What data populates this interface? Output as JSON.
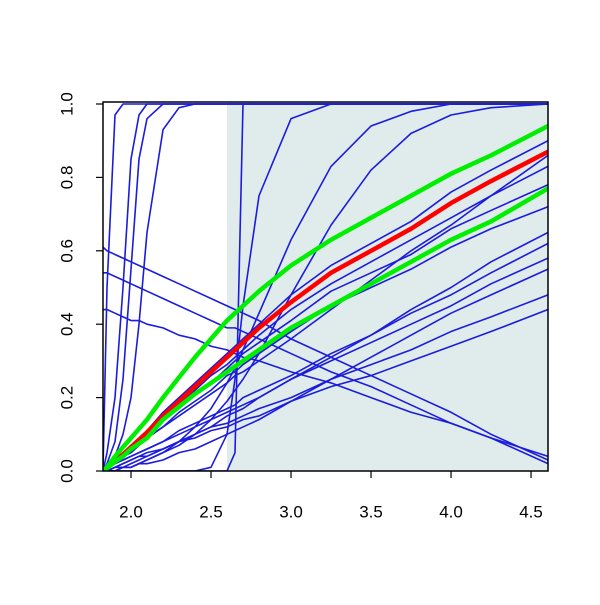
{
  "chart_data": {
    "type": "line",
    "xlim": [
      1.825,
      4.606
    ],
    "ylim": [
      0,
      1
    ],
    "xticks": [
      {
        "value": 2,
        "label": "2.0"
      },
      2.5,
      {
        "value": 3,
        "label": "3.0"
      },
      3.5,
      {
        "value": 4,
        "label": "4.0"
      },
      4.5
    ],
    "yticks": [
      {
        "value": 0,
        "label": "0.0"
      },
      0.2,
      0.4,
      0.6,
      0.8,
      {
        "value": 1,
        "label": "1.0"
      }
    ],
    "shaded_region": {
      "xmin": 2.6,
      "color": "#e0ecec"
    },
    "x": [
      1.825,
      1.85,
      1.9,
      1.95,
      2.0,
      2.05,
      2.1,
      2.2,
      2.3,
      2.4,
      2.5,
      2.6,
      2.65,
      2.7,
      2.8,
      3.0,
      3.25,
      3.5,
      3.75,
      4.0,
      4.25,
      4.606
    ],
    "series": [
      {
        "color": "#1c1cdc",
        "width": 1.6,
        "values": [
          0,
          0,
          0.01,
          0.02,
          0.03,
          0.04,
          0.04,
          0.06,
          0.08,
          0.09,
          0.11,
          0.12,
          0.13,
          0.14,
          0.15,
          0.19,
          0.23,
          0.26,
          0.3,
          0.34,
          0.38,
          0.44
        ]
      },
      {
        "color": "#1c1cdc",
        "width": 1.6,
        "values": [
          0,
          0,
          0.01,
          0.02,
          0.03,
          0.04,
          0.05,
          0.06,
          0.08,
          0.1,
          0.12,
          0.13,
          0.14,
          0.15,
          0.17,
          0.2,
          0.25,
          0.29,
          0.33,
          0.38,
          0.42,
          0.48
        ]
      },
      {
        "color": "#1c1cdc",
        "width": 1.6,
        "values": [
          0,
          0.01,
          0.02,
          0.03,
          0.04,
          0.05,
          0.06,
          0.08,
          0.1,
          0.12,
          0.14,
          0.16,
          0.17,
          0.18,
          0.2,
          0.25,
          0.3,
          0.35,
          0.4,
          0.45,
          0.51,
          0.58
        ]
      },
      {
        "color": "#1c1cdc",
        "width": 1.6,
        "values": [
          0,
          0,
          0.01,
          0.01,
          0.02,
          0.03,
          0.04,
          0.06,
          0.08,
          0.1,
          0.12,
          0.15,
          0.16,
          0.17,
          0.2,
          0.25,
          0.31,
          0.37,
          0.44,
          0.5,
          0.57,
          0.65
        ]
      },
      {
        "color": "#1c1cdc",
        "width": 1.6,
        "values": [
          0,
          0.01,
          0.02,
          0.04,
          0.05,
          0.07,
          0.09,
          0.12,
          0.16,
          0.19,
          0.22,
          0.26,
          0.27,
          0.29,
          0.32,
          0.38,
          0.45,
          0.5,
          0.55,
          0.61,
          0.66,
          0.72
        ]
      },
      {
        "color": "#1c1cdc",
        "width": 1.6,
        "values": [
          0,
          0.01,
          0.03,
          0.04,
          0.06,
          0.08,
          0.09,
          0.14,
          0.17,
          0.21,
          0.24,
          0.28,
          0.3,
          0.32,
          0.35,
          0.41,
          0.49,
          0.54,
          0.59,
          0.66,
          0.71,
          0.78
        ]
      },
      {
        "color": "#1c1cdc",
        "width": 1.6,
        "values": [
          0,
          0.01,
          0.03,
          0.04,
          0.06,
          0.08,
          0.1,
          0.14,
          0.18,
          0.22,
          0.26,
          0.29,
          0.31,
          0.33,
          0.37,
          0.44,
          0.51,
          0.57,
          0.63,
          0.69,
          0.75,
          0.83
        ]
      },
      {
        "color": "#1c1cdc",
        "width": 1.6,
        "values": [
          0,
          0.01,
          0.03,
          0.05,
          0.07,
          0.09,
          0.11,
          0.16,
          0.2,
          0.24,
          0.28,
          0.32,
          0.34,
          0.36,
          0.4,
          0.48,
          0.56,
          0.62,
          0.68,
          0.76,
          0.82,
          0.9
        ]
      },
      {
        "color": "#1c1cdc",
        "width": 1.6,
        "values": [
          0,
          0.01,
          0.02,
          0.04,
          0.05,
          0.07,
          0.09,
          0.12,
          0.15,
          0.18,
          0.21,
          0.24,
          0.26,
          0.27,
          0.3,
          0.36,
          0.44,
          0.52,
          0.6,
          0.67,
          0.75,
          0.86
        ]
      },
      {
        "color": "#1c1cdc",
        "width": 1.6,
        "values": [
          0,
          0.01,
          0.02,
          0.03,
          0.04,
          0.05,
          0.06,
          0.08,
          0.11,
          0.13,
          0.15,
          0.17,
          0.18,
          0.2,
          0.22,
          0.26,
          0.32,
          0.37,
          0.43,
          0.48,
          0.54,
          0.62
        ]
      },
      {
        "color": "#1c1cdc",
        "width": 1.6,
        "values": [
          0,
          0,
          0,
          0.01,
          0.01,
          0.02,
          0.02,
          0.03,
          0.05,
          0.06,
          0.08,
          0.1,
          0.11,
          0.12,
          0.14,
          0.19,
          0.25,
          0.31,
          0.37,
          0.43,
          0.48,
          0.55
        ]
      },
      {
        "color": "#1c1cdc",
        "width": 1.6,
        "values": [
          0.61,
          0.6,
          0.59,
          0.58,
          0.57,
          0.56,
          0.55,
          0.53,
          0.51,
          0.49,
          0.47,
          0.45,
          0.44,
          0.43,
          0.41,
          0.36,
          0.31,
          0.26,
          0.21,
          0.16,
          0.1,
          0.03
        ]
      },
      {
        "color": "#1c1cdc",
        "width": 1.6,
        "values": [
          0.54,
          0.54,
          0.53,
          0.52,
          0.51,
          0.5,
          0.49,
          0.47,
          0.45,
          0.43,
          0.41,
          0.39,
          0.39,
          0.38,
          0.36,
          0.32,
          0.27,
          0.23,
          0.18,
          0.13,
          0.09,
          0.02
        ]
      },
      {
        "color": "#1c1cdc",
        "width": 1.6,
        "values": [
          0.44,
          0.44,
          0.43,
          0.42,
          0.41,
          0.41,
          0.4,
          0.39,
          0.37,
          0.36,
          0.34,
          0.33,
          0.32,
          0.31,
          0.3,
          0.27,
          0.24,
          0.2,
          0.16,
          0.13,
          0.09,
          0.04
        ]
      },
      {
        "color": "#1c1cdc",
        "width": 1.6,
        "values": [
          0,
          0.5,
          0.97,
          1,
          1,
          1,
          1,
          1,
          1,
          1,
          1,
          1,
          1,
          1,
          1,
          1,
          1,
          1,
          1,
          1,
          1,
          1
        ]
      },
      {
        "color": "#1c1cdc",
        "width": 1.6,
        "values": [
          0,
          0.05,
          0.2,
          0.5,
          0.85,
          0.97,
          1,
          1,
          1,
          1,
          1,
          1,
          1,
          1,
          1,
          1,
          1,
          1,
          1,
          1,
          1,
          1
        ]
      },
      {
        "color": "#1c1cdc",
        "width": 1.6,
        "values": [
          0,
          0.02,
          0.08,
          0.25,
          0.55,
          0.85,
          0.96,
          1,
          1,
          1,
          1,
          1,
          1,
          1,
          1,
          1,
          1,
          1,
          1,
          1,
          1,
          1
        ]
      },
      {
        "color": "#1c1cdc",
        "width": 1.6,
        "values": [
          0,
          0.01,
          0.04,
          0.1,
          0.2,
          0.4,
          0.65,
          0.93,
          0.99,
          1,
          1,
          1,
          1,
          1,
          1,
          1,
          1,
          1,
          1,
          1,
          1,
          1
        ]
      },
      {
        "color": "#1c1cdc",
        "width": 1.6,
        "values": [
          0,
          0,
          0,
          0,
          0,
          0,
          0,
          0,
          0,
          0,
          0,
          0,
          0.05,
          1,
          1,
          1,
          1,
          1,
          1,
          1,
          1,
          1
        ]
      },
      {
        "color": "#1c1cdc",
        "width": 1.6,
        "values": [
          0,
          0,
          0,
          0,
          0,
          0,
          0,
          0,
          0,
          0,
          0.01,
          0.1,
          0.25,
          0.45,
          0.75,
          0.96,
          1,
          1,
          1,
          1,
          1,
          1
        ]
      },
      {
        "color": "#1c1cdc",
        "width": 1.6,
        "values": [
          0,
          0,
          0,
          0.01,
          0.01,
          0.02,
          0.03,
          0.05,
          0.08,
          0.12,
          0.17,
          0.24,
          0.28,
          0.33,
          0.43,
          0.63,
          0.83,
          0.94,
          0.98,
          1,
          1,
          1
        ]
      },
      {
        "color": "#1c1cdc",
        "width": 1.6,
        "values": [
          0,
          0,
          0,
          0.01,
          0.01,
          0.02,
          0.03,
          0.05,
          0.07,
          0.1,
          0.14,
          0.19,
          0.22,
          0.25,
          0.32,
          0.48,
          0.67,
          0.82,
          0.92,
          0.97,
          0.99,
          1
        ]
      },
      {
        "color": "#ff0000",
        "width": 4.5,
        "values": [
          0,
          0.01,
          0.03,
          0.045,
          0.065,
          0.085,
          0.105,
          0.15,
          0.19,
          0.23,
          0.27,
          0.31,
          0.33,
          0.35,
          0.39,
          0.46,
          0.54,
          0.6,
          0.66,
          0.73,
          0.79,
          0.87
        ]
      },
      {
        "color": "#00ee00",
        "width": 4.5,
        "values": [
          0,
          0.01,
          0.04,
          0.065,
          0.09,
          0.115,
          0.14,
          0.2,
          0.255,
          0.31,
          0.36,
          0.41,
          0.43,
          0.45,
          0.49,
          0.56,
          0.63,
          0.69,
          0.75,
          0.81,
          0.86,
          0.94
        ]
      },
      {
        "color": "#00ee00",
        "width": 4.5,
        "values": [
          0,
          0.008,
          0.025,
          0.04,
          0.06,
          0.075,
          0.09,
          0.14,
          0.175,
          0.21,
          0.24,
          0.27,
          0.285,
          0.3,
          0.33,
          0.39,
          0.45,
          0.51,
          0.57,
          0.63,
          0.68,
          0.77
        ]
      }
    ]
  }
}
